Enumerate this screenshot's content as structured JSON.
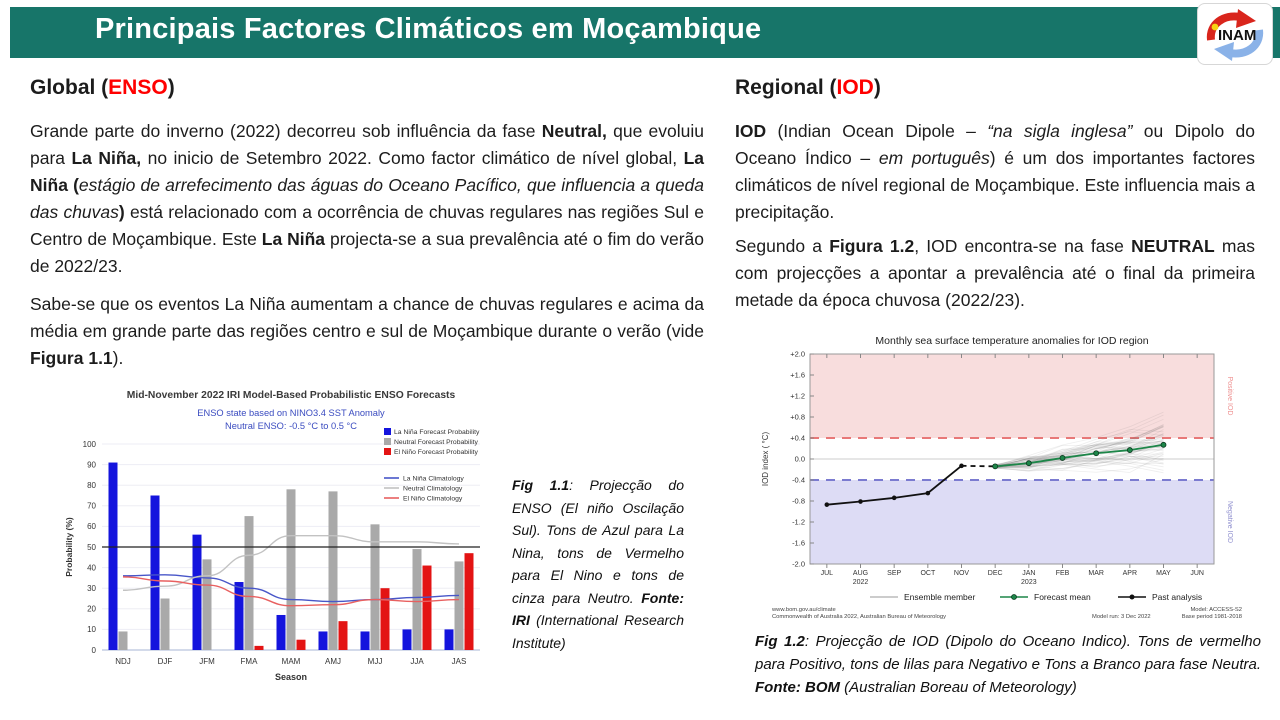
{
  "header": {
    "title": "Principais Factores Climáticos em Moçambique",
    "band_color": "#177569",
    "logo_text": "INAM"
  },
  "accent_red": "#ff0000",
  "left": {
    "heading_runs": [
      {
        "t": "Global ("
      },
      {
        "t": "ENSO",
        "c": "#ff0000"
      },
      {
        "t": ")"
      }
    ],
    "p1_runs": [
      {
        "t": "Grande parte do inverno (2022) decorreu sob influência da fase "
      },
      {
        "t": "Neutral,",
        "b": true
      },
      {
        "t": " que evoluiu para "
      },
      {
        "t": "La Niña,",
        "b": true
      },
      {
        "t": " no inicio de Setembro 2022. Como factor climático de nível global, "
      },
      {
        "t": "La Niña (",
        "b": true
      },
      {
        "t": "estágio de arrefecimento das águas do Oceano Pacífico, que influencia a queda das chuvas",
        "i": true
      },
      {
        "t": ")",
        "b": true
      },
      {
        "t": " está relacionado com a ocorrência de chuvas regulares nas regiões Sul e Centro de Moçambique. Este "
      },
      {
        "t": "La Niña",
        "b": true
      },
      {
        "t": "  projecta-se a sua prevalência até o fim do verão de 2022/23."
      }
    ],
    "p2_runs": [
      {
        "t": "Sabe-se que os eventos La Niña aumentam a chance de chuvas regulares e acima da média em grande parte das regiões centro e sul de Moçambique durante o verão (vide "
      },
      {
        "t": "Figura 1.1",
        "b": true
      },
      {
        "t": ")."
      }
    ],
    "caption_runs": [
      {
        "t": "Fig 1.1",
        "b": true
      },
      {
        "t": ": Projecção do ENSO (El niño Oscilação Sul). Tons de Azul para La Nina, tons de Vermelho para El Nino e tons de cinza para Neutro. "
      },
      {
        "t": "Fonte: IRI",
        "b": true
      },
      {
        "t": " (International Research Institute)"
      }
    ]
  },
  "right": {
    "heading_runs": [
      {
        "t": "Regional ("
      },
      {
        "t": "IOD",
        "c": "#ff0000"
      },
      {
        "t": ")"
      }
    ],
    "p1_runs": [
      {
        "t": "IOD",
        "b": true
      },
      {
        "t": " (Indian Ocean Dipole – "
      },
      {
        "t": "“na sigla inglesa”",
        "i": true
      },
      {
        "t": " ou Dipolo do Oceano Índico – "
      },
      {
        "t": "em português",
        "i": true
      },
      {
        "t": ") é um dos importantes factores climáticos de nível regional de Moçambique. Este influencia mais a precipitação."
      }
    ],
    "p2_runs": [
      {
        "t": "Segundo a "
      },
      {
        "t": "Figura 1.2",
        "b": true
      },
      {
        "t": ", IOD encontra-se na fase "
      },
      {
        "t": "NEUTRAL",
        "b": true
      },
      {
        "t": " mas com projecções a apontar a prevalência até o final da primeira metade da  época chuvosa (2022/23)."
      }
    ],
    "caption_runs": [
      {
        "t": "Fig 1.2",
        "b": true
      },
      {
        "t": ": Projecção de IOD (Dipolo do Oceano Indico). Tons de vermelho para Positivo, tons de lilas para Negativo e Tons a Branco para fase Neutra. "
      },
      {
        "t": "Fonte: BOM",
        "b": true
      },
      {
        "t": " (Australian Boreau of Meteorology)"
      }
    ]
  },
  "chart_data": [
    {
      "type": "bar",
      "title": "Mid-November 2022 IRI Model-Based Probabilistic ENSO Forecasts",
      "subtitle1": "ENSO state based on NINO3.4 SST Anomaly",
      "subtitle2": "Neutral ENSO: -0.5 °C to 0.5 °C",
      "subtitle_color": "#3b4cc0",
      "xlabel": "Season",
      "ylabel": "Probability (%)",
      "ylim": [
        0,
        100
      ],
      "refline": 50,
      "categories": [
        "NDJ",
        "DJF",
        "JFM",
        "FMA",
        "MAM",
        "AMJ",
        "MJJ",
        "JJA",
        "JAS"
      ],
      "series": [
        {
          "kind": "bar",
          "name": "La Niña Forecast Probability",
          "color": "#1414dd",
          "values": [
            91,
            75,
            56,
            33,
            17,
            9,
            9,
            10,
            10
          ]
        },
        {
          "kind": "bar",
          "name": "Neutral Forecast Probability",
          "color": "#a9a9a9",
          "values": [
            9,
            25,
            44,
            65,
            78,
            77,
            61,
            49,
            43
          ]
        },
        {
          "kind": "bar",
          "name": "El Niño Forecast Probability",
          "color": "#e31414",
          "values": [
            0,
            0,
            0,
            2,
            5,
            14,
            30,
            41,
            47
          ]
        },
        {
          "kind": "line",
          "name": "La Niña Climatology",
          "color": "#4856c8",
          "values": [
            36,
            36.5,
            35,
            30,
            24.5,
            23.5,
            24.5,
            25.5,
            26.5
          ]
        },
        {
          "kind": "line",
          "name": "Neutral Climatology",
          "color": "#c2c2c2",
          "values": [
            29,
            31,
            36,
            46,
            55.5,
            55.5,
            52.5,
            52.5,
            51.5
          ]
        },
        {
          "kind": "line",
          "name": "El Niño Climatology",
          "color": "#e86060",
          "values": [
            35.5,
            33.5,
            31.5,
            26,
            21.5,
            22,
            24.5,
            23.5,
            24.5
          ]
        }
      ]
    },
    {
      "type": "line",
      "title": "Monthly sea surface temperature anomalies for IOD region",
      "ylabel": "IOD index ( °C)",
      "ylim": [
        -2,
        2
      ],
      "yticks": [
        {
          "label": "+2.0",
          "v": 2.0
        },
        {
          "label": "+1.6",
          "v": 1.6
        },
        {
          "label": "+1.2",
          "v": 1.2
        },
        {
          "label": "+0.8",
          "v": 0.8
        },
        {
          "label": "+0.4",
          "v": 0.4
        },
        {
          "label": "0.0",
          "v": 0.0
        },
        {
          "label": "-0.4",
          "v": -0.4
        },
        {
          "label": "-0.8",
          "v": -0.8
        },
        {
          "label": "-1.2",
          "v": -1.2
        },
        {
          "label": "-1.6",
          "v": -1.6
        },
        {
          "label": "-2.0",
          "v": -2.0
        }
      ],
      "months": [
        "JUL",
        "AUG|2022",
        "SEP",
        "OCT",
        "NOV",
        "DEC",
        "JAN|2023",
        "FEB",
        "MAR",
        "APR",
        "MAY",
        "JUN"
      ],
      "threshold": 0.4,
      "positive_label": "Positive IOD",
      "negative_label": "Negative IOD",
      "past_values": [
        -0.87,
        -0.81,
        -0.74,
        -0.65,
        -0.13
      ],
      "forecast_start_idx": 5,
      "forecast_values": [
        -0.14,
        -0.08,
        0.02,
        0.11,
        0.17,
        0.27
      ],
      "ensemble_count": 55,
      "legend": [
        {
          "label": "Ensemble member"
        },
        {
          "label": "Forecast mean"
        },
        {
          "label": "Past analysis"
        }
      ],
      "source_line1": "www.bom.gov.au/climate",
      "source_line2": "Commonwealth of Australia 2022, Australian Bureau of Meteorology",
      "model_run": "Model run: 3 Dec 2022",
      "model_line1": "Model: ACCESS-S2",
      "model_line2": "Base period 1981-2018",
      "colors": {
        "positive_region": "#f8dddd",
        "negative_region": "#dddcf5",
        "pos_line": "#e87878",
        "neg_line": "#7b7bd0",
        "forecast": "#1d8649",
        "past": "#111111",
        "ensemble": "#555555",
        "pos_label": "#ee9090",
        "neg_label": "#9090cf"
      }
    }
  ]
}
